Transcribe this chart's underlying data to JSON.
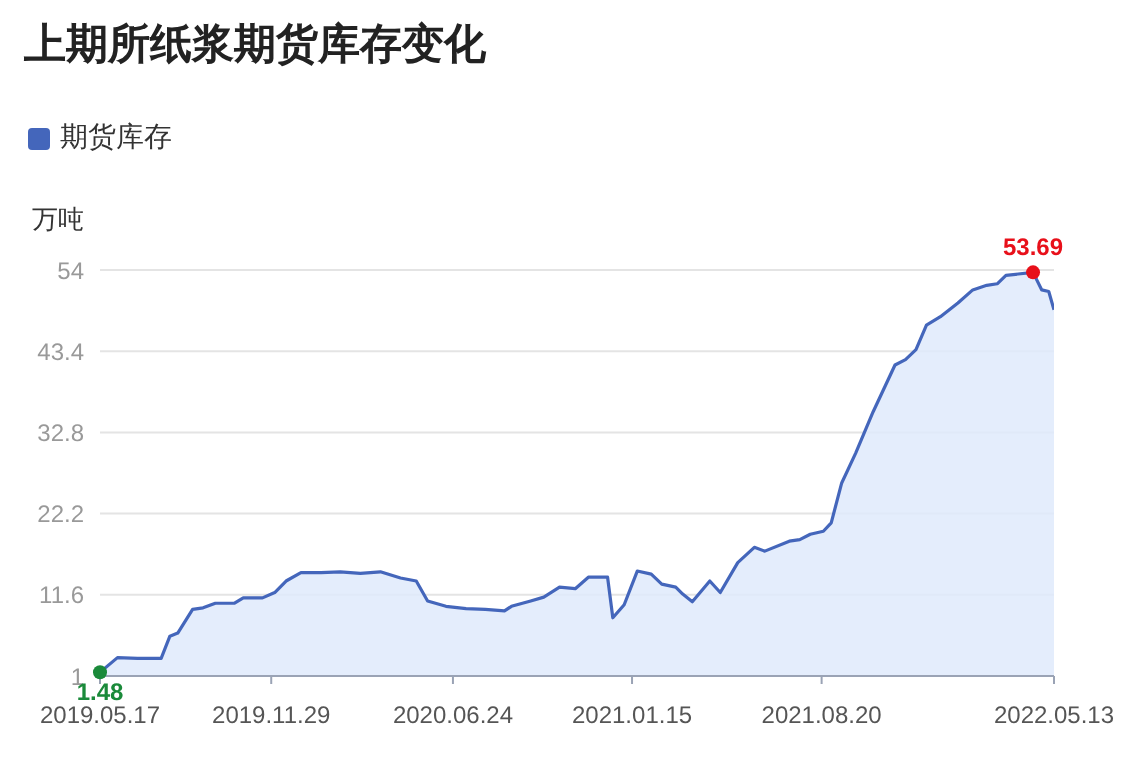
{
  "chart_data": {
    "type": "area",
    "title": "上期所纸浆期货库存变化",
    "ylabel": "万吨",
    "legend": "top left",
    "grid": "y",
    "marker": "none",
    "x": [
      "2019-05-17",
      "2019-06-06",
      "2019-06-29",
      "2019-07-26",
      "2019-08-05",
      "2019-08-14",
      "2019-08-31",
      "2019-09-12",
      "2019-09-26",
      "2019-10-18",
      "2019-10-28",
      "2019-11-19",
      "2019-12-03",
      "2019-12-16",
      "2020-01-02",
      "2020-01-25",
      "2020-02-16",
      "2020-03-10",
      "2020-04-02",
      "2020-04-25",
      "2020-05-13",
      "2020-05-26",
      "2020-06-16",
      "2020-07-09",
      "2020-07-31",
      "2020-08-22",
      "2020-08-30",
      "2020-09-21",
      "2020-10-06",
      "2020-10-24",
      "2020-11-11",
      "2020-11-26",
      "2020-12-18",
      "2020-12-24",
      "2021-01-06",
      "2021-01-21",
      "2021-02-06",
      "2021-02-18",
      "2021-03-06",
      "2021-03-14",
      "2021-03-25",
      "2021-04-14",
      "2021-04-26",
      "2021-05-16",
      "2021-06-04",
      "2021-06-16",
      "2021-07-14",
      "2021-07-26",
      "2021-08-07",
      "2021-08-22",
      "2021-08-31",
      "2021-09-12",
      "2021-09-28",
      "2021-10-18",
      "2021-11-12",
      "2021-11-24",
      "2021-12-06",
      "2021-12-18",
      "2022-01-03",
      "2022-01-23",
      "2022-02-09",
      "2022-02-25",
      "2022-03-09",
      "2022-03-19",
      "2022-04-19",
      "2022-04-29",
      "2022-05-07",
      "2022-05-13"
    ],
    "series": [
      {
        "name": "期货库存",
        "color": "#4466bb",
        "values": [
          1.48,
          3.4,
          3.3,
          3.3,
          6.2,
          6.6,
          9.7,
          9.9,
          10.5,
          10.5,
          11.2,
          11.2,
          11.9,
          13.4,
          14.5,
          14.5,
          14.6,
          14.4,
          14.6,
          13.8,
          13.4,
          10.8,
          10.1,
          9.8,
          9.7,
          9.5,
          10.1,
          10.8,
          11.3,
          12.6,
          12.4,
          13.9,
          13.9,
          8.6,
          10.3,
          14.7,
          14.3,
          13.0,
          12.6,
          11.7,
          10.7,
          13.4,
          11.9,
          15.8,
          17.8,
          17.3,
          18.6,
          18.8,
          19.5,
          19.9,
          21.0,
          26.2,
          30.1,
          35.5,
          41.6,
          42.3,
          43.6,
          46.8,
          47.9,
          49.7,
          51.4,
          52.0,
          52.2,
          53.3,
          53.69,
          51.4,
          51.2,
          48.8
        ]
      }
    ],
    "annotations": [
      {
        "text": "1.48",
        "x": "2019-05-17",
        "y": 1.48
      },
      {
        "text": "53.69",
        "x": "2022-04-19",
        "y": 53.69
      }
    ],
    "xlim": [
      "2019-05-17",
      "2022-05-13"
    ],
    "xticks": [
      {
        "value": "2019-05-17",
        "label": "2019.05.17"
      },
      {
        "value": "2019-11-29",
        "label": "2019.11.29"
      },
      {
        "value": "2020-06-24",
        "label": "2020.06.24"
      },
      {
        "value": "2021-01-15",
        "label": "2021.01.15"
      },
      {
        "value": "2021-08-20",
        "label": "2021.08.20"
      },
      {
        "value": "2022-05-13",
        "label": "2022.05.13"
      }
    ],
    "ylim": [
      1,
      54
    ],
    "yticks": [
      1,
      11.6,
      22.2,
      32.8,
      43.4,
      54
    ]
  }
}
